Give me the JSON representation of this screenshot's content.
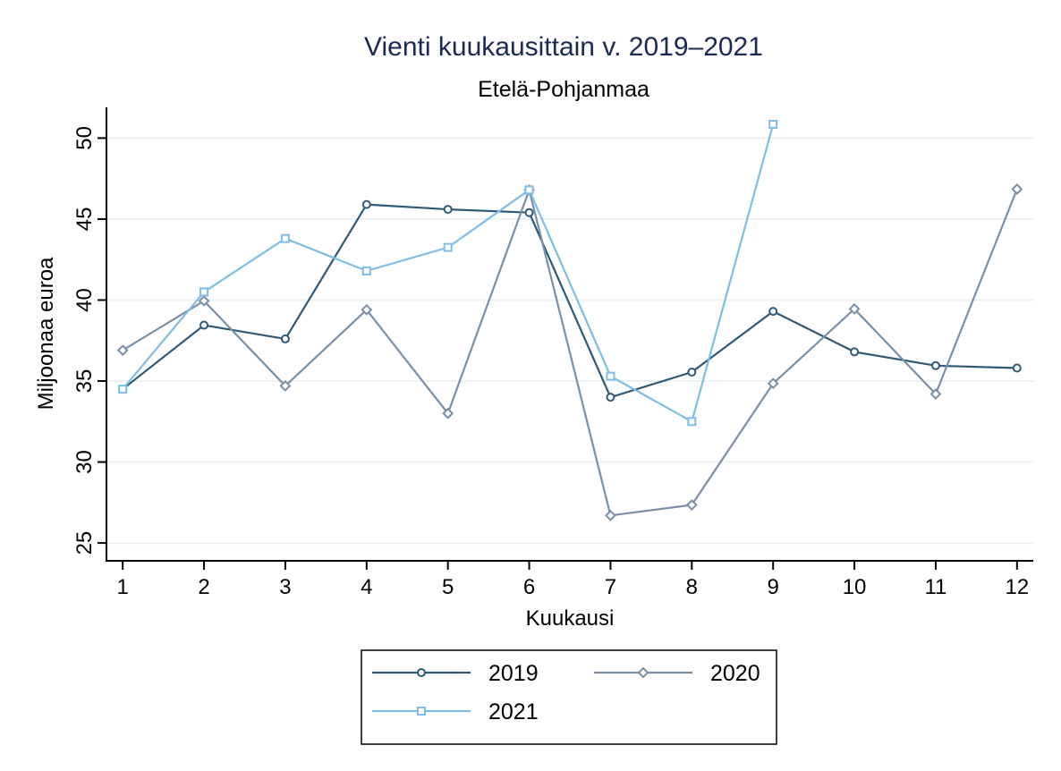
{
  "chart_data": {
    "type": "line",
    "title": "Vienti kuukausittain v. 2019–2021",
    "subtitle": "Etelä-Pohjanmaa",
    "xlabel": "Kuukausi",
    "ylabel": "Miljoonaa euroa",
    "x": [
      1,
      2,
      3,
      4,
      5,
      6,
      7,
      8,
      9,
      10,
      11,
      12
    ],
    "xticks": [
      "1",
      "2",
      "3",
      "4",
      "5",
      "6",
      "7",
      "8",
      "9",
      "10",
      "11",
      "12"
    ],
    "yticks": [
      "25",
      "30",
      "35",
      "40",
      "45",
      "50"
    ],
    "xlim": [
      0.8,
      12.2
    ],
    "ylim": [
      23.9,
      51.9
    ],
    "grid": true,
    "legend_position": "bottom",
    "colors": {
      "title": "#1a2a52",
      "grid": "#eaf2f3"
    },
    "series": [
      {
        "name": "2019",
        "color": "#2f5a77",
        "marker": "circle",
        "values": [
          34.5,
          38.45,
          37.6,
          45.9,
          45.6,
          45.4,
          34.0,
          35.55,
          39.3,
          36.8,
          35.95,
          35.8
        ]
      },
      {
        "name": "2020",
        "color": "#7a90a8",
        "marker": "diamond",
        "values": [
          36.9,
          39.95,
          34.7,
          39.4,
          33.0,
          46.8,
          26.7,
          27.35,
          34.85,
          39.45,
          34.2,
          46.85
        ]
      },
      {
        "name": "2021",
        "color": "#7fbde5",
        "marker": "square",
        "values": [
          34.5,
          40.5,
          43.8,
          41.8,
          43.25,
          46.8,
          35.3,
          32.5,
          50.85,
          null,
          null,
          null
        ]
      }
    ]
  }
}
